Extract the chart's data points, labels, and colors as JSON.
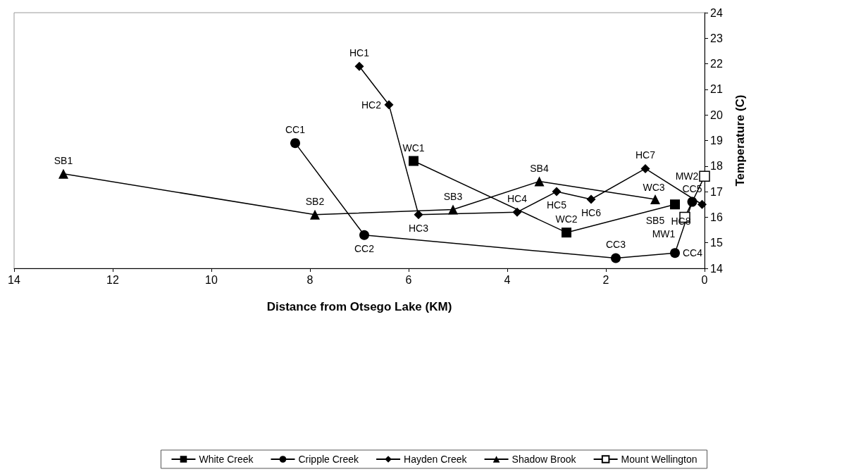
{
  "chart_data": {
    "type": "line",
    "xlabel": "Distance from Otsego Lake (KM)",
    "ylabel": "Temperature (C)",
    "xlim": [
      14,
      0
    ],
    "xticks": [
      14,
      12,
      10,
      8,
      6,
      4,
      2,
      0
    ],
    "ylim": [
      14,
      24
    ],
    "yticks": [
      14,
      15,
      16,
      17,
      18,
      19,
      20,
      21,
      22,
      23,
      24
    ],
    "grid": false,
    "legend": "bottom",
    "line_style": "solid",
    "series": [
      {
        "name": "White Creek",
        "color": "#000000",
        "marker": "square",
        "x": [
          5.9,
          2.8,
          0.6
        ],
        "values": [
          18.2,
          15.4,
          16.5
        ],
        "value_labels": [
          "WC1",
          "WC2",
          "WC3"
        ]
      },
      {
        "name": "Cripple Creek",
        "color": "#000000",
        "marker": "circle",
        "x": [
          8.3,
          6.9,
          1.8,
          0.6,
          0.25
        ],
        "values": [
          18.9,
          15.3,
          14.4,
          14.6,
          16.6
        ],
        "value_labels": [
          "CC1",
          "CC2",
          "CC3",
          "CC4",
          "CC5"
        ]
      },
      {
        "name": "Hayden Creek",
        "color": "#000000",
        "marker": "diamond",
        "x": [
          7.0,
          6.4,
          5.8,
          3.8,
          3.0,
          2.3,
          1.2,
          0.05
        ],
        "values": [
          21.9,
          20.4,
          16.1,
          16.2,
          17.0,
          16.7,
          17.9,
          16.5
        ],
        "value_labels": [
          "HC1",
          "HC2",
          "HC3",
          "HC4",
          "HC5",
          "HC6",
          "HC7",
          "HC8"
        ]
      },
      {
        "name": "Shadow Brook",
        "color": "#000000",
        "marker": "triangle",
        "x": [
          13.0,
          7.9,
          5.1,
          3.35,
          1.0
        ],
        "values": [
          17.7,
          16.1,
          16.3,
          17.4,
          16.7
        ],
        "value_labels": [
          "SB1",
          "SB2",
          "SB3",
          "SB4",
          "SB5"
        ]
      },
      {
        "name": "Mount Wellington",
        "color": "#000000",
        "colors": [
          "#ffffff",
          "#ffffff"
        ],
        "marker": "square",
        "x": [
          0.4,
          0.0
        ],
        "values": [
          16.0,
          17.6
        ],
        "value_labels": [
          "MW1",
          "MW2"
        ]
      }
    ]
  }
}
